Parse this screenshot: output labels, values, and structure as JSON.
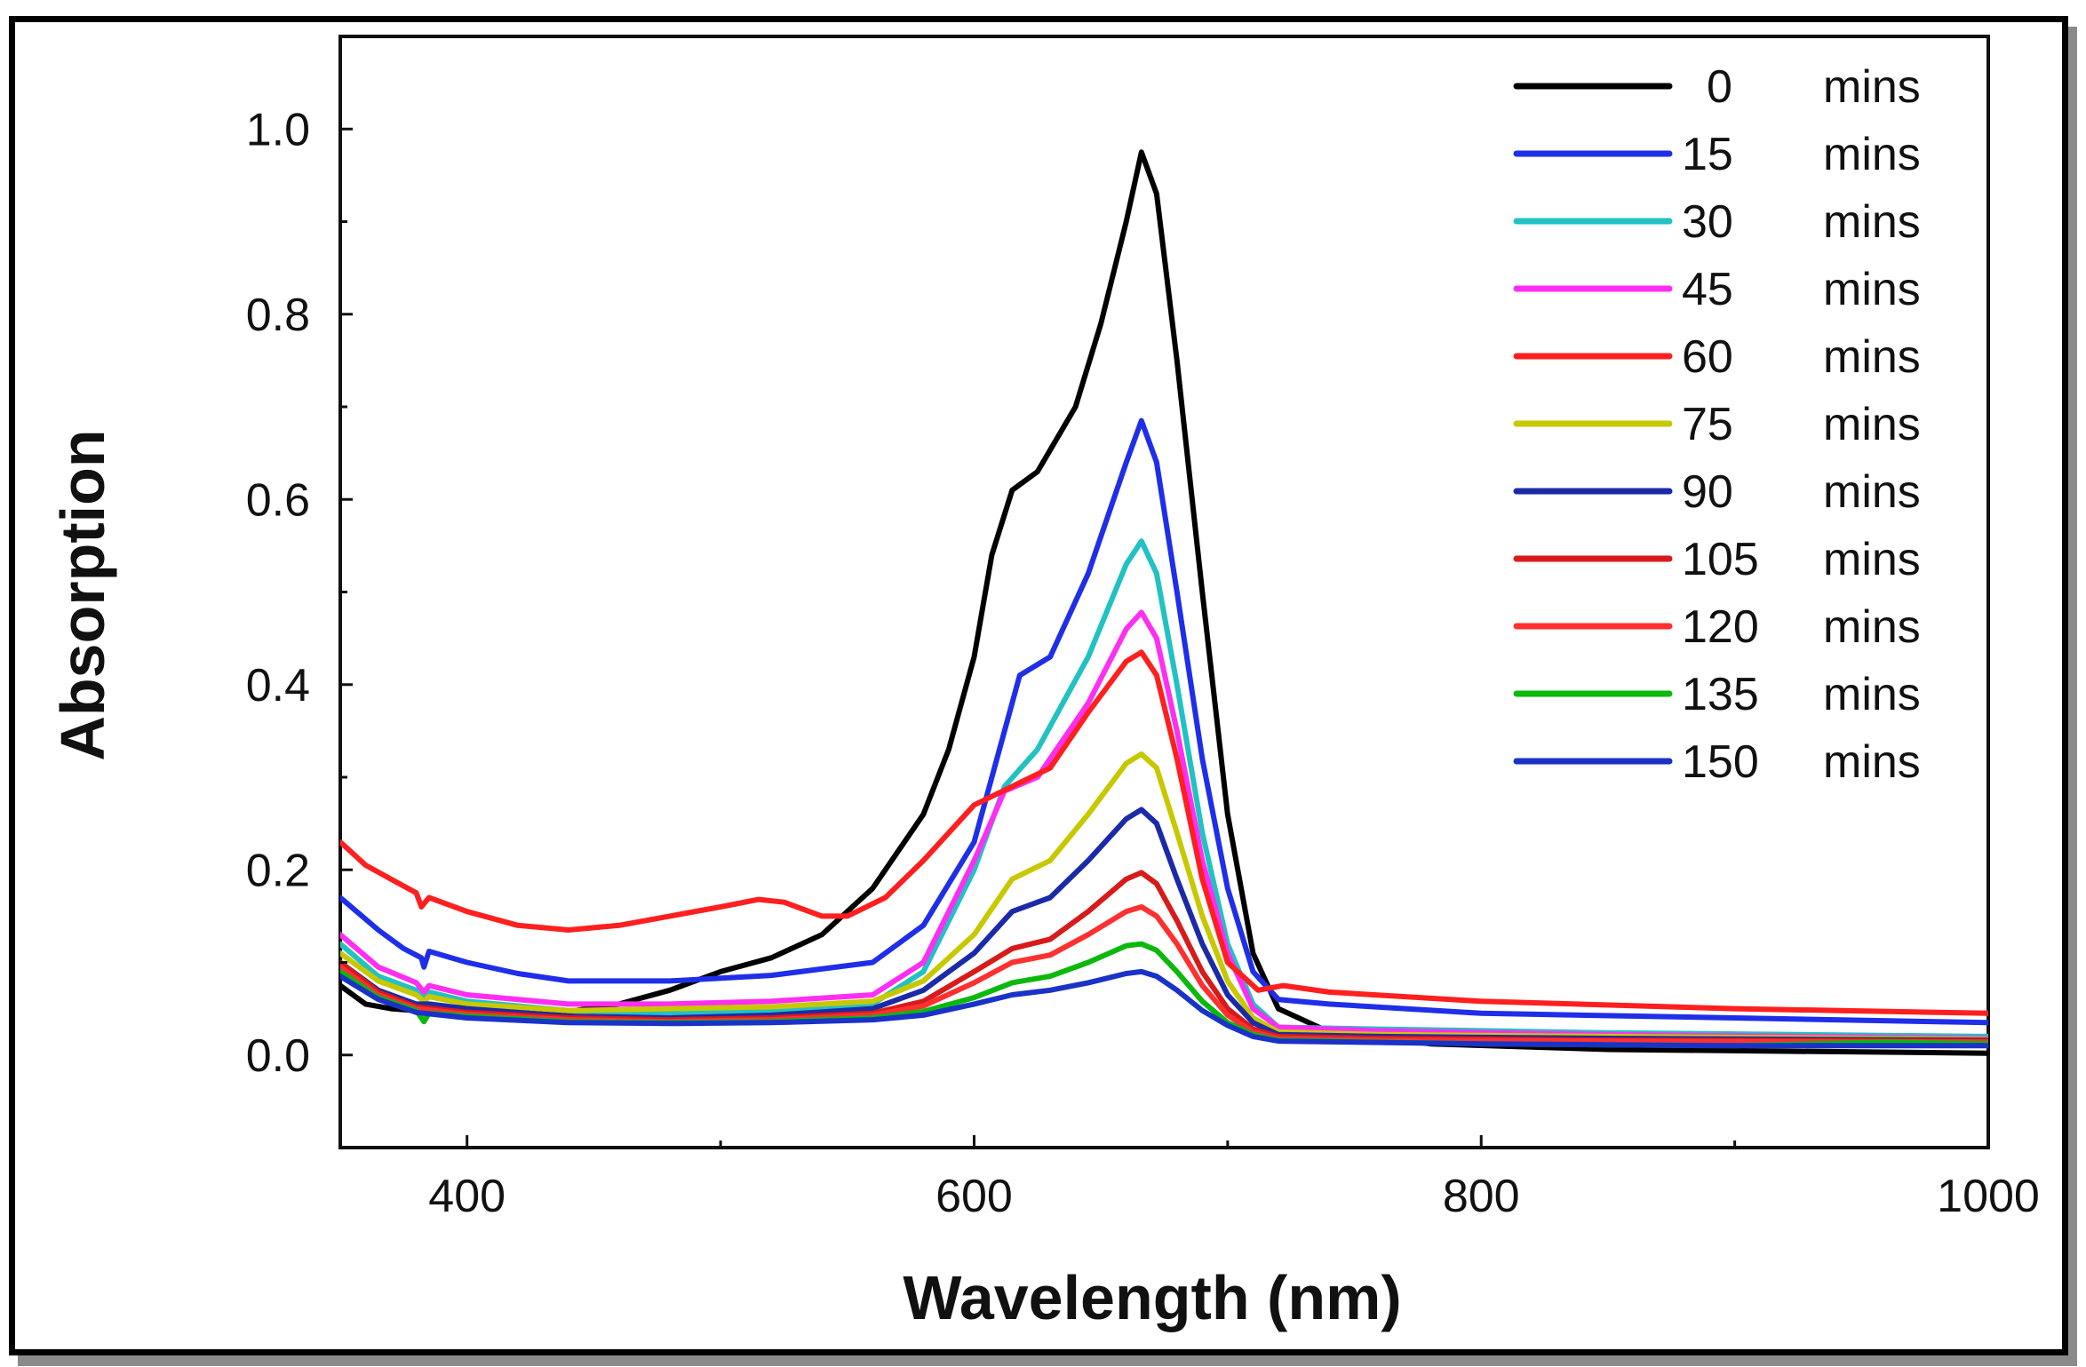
{
  "chart_data": {
    "type": "line",
    "title": "",
    "xlabel": "Wavelength (nm)",
    "ylabel": "Absorption",
    "xlim": [
      350,
      1000
    ],
    "ylim": [
      -0.1,
      1.1
    ],
    "xticks": [
      400,
      600,
      800,
      1000
    ],
    "yticks": [
      0.0,
      0.2,
      0.4,
      0.6,
      0.8,
      1.0
    ],
    "xtick_labels": [
      "400",
      "600",
      "800",
      "1000"
    ],
    "ytick_labels": [
      "0.0",
      "0.2",
      "0.4",
      "0.6",
      "0.8",
      "1.0"
    ],
    "grid": false,
    "legend_position": "top-right",
    "legend_unit": "mins",
    "series": [
      {
        "name": "0",
        "color": "#000000",
        "points": [
          [
            350,
            0.075
          ],
          [
            360,
            0.055
          ],
          [
            370,
            0.05
          ],
          [
            380,
            0.048
          ],
          [
            400,
            0.045
          ],
          [
            420,
            0.045
          ],
          [
            440,
            0.047
          ],
          [
            460,
            0.055
          ],
          [
            480,
            0.07
          ],
          [
            500,
            0.09
          ],
          [
            520,
            0.105
          ],
          [
            540,
            0.13
          ],
          [
            560,
            0.18
          ],
          [
            580,
            0.26
          ],
          [
            590,
            0.33
          ],
          [
            600,
            0.43
          ],
          [
            607,
            0.54
          ],
          [
            615,
            0.61
          ],
          [
            625,
            0.63
          ],
          [
            640,
            0.7
          ],
          [
            650,
            0.79
          ],
          [
            660,
            0.9
          ],
          [
            666,
            0.975
          ],
          [
            672,
            0.93
          ],
          [
            680,
            0.75
          ],
          [
            690,
            0.5
          ],
          [
            700,
            0.26
          ],
          [
            710,
            0.11
          ],
          [
            720,
            0.05
          ],
          [
            740,
            0.025
          ],
          [
            780,
            0.012
          ],
          [
            850,
            0.006
          ],
          [
            1000,
            0.002
          ]
        ]
      },
      {
        "name": "15",
        "color": "#1f2ee8",
        "points": [
          [
            350,
            0.17
          ],
          [
            365,
            0.135
          ],
          [
            375,
            0.115
          ],
          [
            382,
            0.105
          ],
          [
            383,
            0.095
          ],
          [
            385,
            0.112
          ],
          [
            400,
            0.1
          ],
          [
            420,
            0.088
          ],
          [
            440,
            0.08
          ],
          [
            480,
            0.08
          ],
          [
            520,
            0.086
          ],
          [
            560,
            0.1
          ],
          [
            580,
            0.14
          ],
          [
            600,
            0.23
          ],
          [
            610,
            0.33
          ],
          [
            618,
            0.41
          ],
          [
            630,
            0.43
          ],
          [
            645,
            0.52
          ],
          [
            660,
            0.64
          ],
          [
            666,
            0.685
          ],
          [
            672,
            0.64
          ],
          [
            680,
            0.5
          ],
          [
            690,
            0.32
          ],
          [
            700,
            0.18
          ],
          [
            710,
            0.09
          ],
          [
            720,
            0.06
          ],
          [
            740,
            0.055
          ],
          [
            800,
            0.045
          ],
          [
            900,
            0.04
          ],
          [
            1000,
            0.035
          ]
        ]
      },
      {
        "name": "30",
        "color": "#22c1c3",
        "points": [
          [
            350,
            0.12
          ],
          [
            365,
            0.085
          ],
          [
            380,
            0.07
          ],
          [
            383,
            0.06
          ],
          [
            385,
            0.068
          ],
          [
            400,
            0.058
          ],
          [
            440,
            0.048
          ],
          [
            480,
            0.045
          ],
          [
            520,
            0.047
          ],
          [
            560,
            0.055
          ],
          [
            580,
            0.09
          ],
          [
            600,
            0.2
          ],
          [
            612,
            0.29
          ],
          [
            625,
            0.33
          ],
          [
            645,
            0.43
          ],
          [
            660,
            0.53
          ],
          [
            666,
            0.555
          ],
          [
            672,
            0.52
          ],
          [
            680,
            0.4
          ],
          [
            690,
            0.24
          ],
          [
            700,
            0.12
          ],
          [
            710,
            0.055
          ],
          [
            720,
            0.03
          ],
          [
            760,
            0.028
          ],
          [
            850,
            0.024
          ],
          [
            1000,
            0.02
          ]
        ]
      },
      {
        "name": "45",
        "color": "#ff2ef2",
        "points": [
          [
            350,
            0.13
          ],
          [
            365,
            0.095
          ],
          [
            380,
            0.078
          ],
          [
            383,
            0.068
          ],
          [
            385,
            0.075
          ],
          [
            400,
            0.065
          ],
          [
            440,
            0.055
          ],
          [
            480,
            0.055
          ],
          [
            520,
            0.058
          ],
          [
            560,
            0.065
          ],
          [
            580,
            0.1
          ],
          [
            600,
            0.21
          ],
          [
            612,
            0.285
          ],
          [
            625,
            0.3
          ],
          [
            645,
            0.38
          ],
          [
            660,
            0.46
          ],
          [
            666,
            0.478
          ],
          [
            672,
            0.45
          ],
          [
            680,
            0.35
          ],
          [
            690,
            0.21
          ],
          [
            700,
            0.11
          ],
          [
            710,
            0.05
          ],
          [
            720,
            0.03
          ],
          [
            760,
            0.026
          ],
          [
            850,
            0.022
          ],
          [
            1000,
            0.018
          ]
        ]
      },
      {
        "name": "60",
        "color": "#ff1f1f",
        "points": [
          [
            350,
            0.23
          ],
          [
            360,
            0.205
          ],
          [
            370,
            0.19
          ],
          [
            380,
            0.175
          ],
          [
            382,
            0.16
          ],
          [
            385,
            0.17
          ],
          [
            400,
            0.155
          ],
          [
            420,
            0.14
          ],
          [
            440,
            0.135
          ],
          [
            460,
            0.14
          ],
          [
            480,
            0.15
          ],
          [
            500,
            0.16
          ],
          [
            515,
            0.168
          ],
          [
            525,
            0.165
          ],
          [
            540,
            0.15
          ],
          [
            550,
            0.15
          ],
          [
            565,
            0.17
          ],
          [
            580,
            0.21
          ],
          [
            600,
            0.27
          ],
          [
            615,
            0.29
          ],
          [
            630,
            0.31
          ],
          [
            645,
            0.37
          ],
          [
            660,
            0.425
          ],
          [
            666,
            0.435
          ],
          [
            672,
            0.41
          ],
          [
            680,
            0.32
          ],
          [
            690,
            0.19
          ],
          [
            700,
            0.1
          ],
          [
            712,
            0.07
          ],
          [
            722,
            0.075
          ],
          [
            740,
            0.068
          ],
          [
            800,
            0.058
          ],
          [
            900,
            0.05
          ],
          [
            1000,
            0.045
          ]
        ]
      },
      {
        "name": "75",
        "color": "#c8c800",
        "points": [
          [
            350,
            0.11
          ],
          [
            365,
            0.08
          ],
          [
            380,
            0.065
          ],
          [
            383,
            0.058
          ],
          [
            385,
            0.063
          ],
          [
            400,
            0.055
          ],
          [
            440,
            0.048
          ],
          [
            480,
            0.05
          ],
          [
            520,
            0.052
          ],
          [
            560,
            0.058
          ],
          [
            580,
            0.08
          ],
          [
            600,
            0.13
          ],
          [
            615,
            0.19
          ],
          [
            630,
            0.21
          ],
          [
            645,
            0.26
          ],
          [
            660,
            0.315
          ],
          [
            666,
            0.325
          ],
          [
            672,
            0.31
          ],
          [
            680,
            0.24
          ],
          [
            690,
            0.15
          ],
          [
            700,
            0.08
          ],
          [
            710,
            0.04
          ],
          [
            720,
            0.025
          ],
          [
            760,
            0.022
          ],
          [
            850,
            0.02
          ],
          [
            1000,
            0.017
          ]
        ]
      },
      {
        "name": "90",
        "color": "#1b2aa8",
        "points": [
          [
            350,
            0.1
          ],
          [
            365,
            0.07
          ],
          [
            380,
            0.055
          ],
          [
            385,
            0.055
          ],
          [
            400,
            0.05
          ],
          [
            440,
            0.042
          ],
          [
            480,
            0.04
          ],
          [
            520,
            0.043
          ],
          [
            560,
            0.05
          ],
          [
            580,
            0.07
          ],
          [
            600,
            0.11
          ],
          [
            615,
            0.155
          ],
          [
            630,
            0.17
          ],
          [
            645,
            0.21
          ],
          [
            660,
            0.255
          ],
          [
            666,
            0.265
          ],
          [
            672,
            0.25
          ],
          [
            680,
            0.19
          ],
          [
            690,
            0.12
          ],
          [
            700,
            0.065
          ],
          [
            710,
            0.035
          ],
          [
            720,
            0.022
          ],
          [
            760,
            0.02
          ],
          [
            850,
            0.018
          ],
          [
            1000,
            0.016
          ]
        ]
      },
      {
        "name": "105",
        "color": "#d81a1a",
        "points": [
          [
            350,
            0.1
          ],
          [
            365,
            0.068
          ],
          [
            380,
            0.052
          ],
          [
            400,
            0.046
          ],
          [
            440,
            0.04
          ],
          [
            480,
            0.038
          ],
          [
            520,
            0.04
          ],
          [
            560,
            0.045
          ],
          [
            580,
            0.058
          ],
          [
            600,
            0.09
          ],
          [
            615,
            0.115
          ],
          [
            630,
            0.125
          ],
          [
            645,
            0.155
          ],
          [
            660,
            0.19
          ],
          [
            666,
            0.197
          ],
          [
            672,
            0.185
          ],
          [
            680,
            0.145
          ],
          [
            690,
            0.09
          ],
          [
            700,
            0.05
          ],
          [
            710,
            0.028
          ],
          [
            720,
            0.02
          ],
          [
            760,
            0.018
          ],
          [
            850,
            0.016
          ],
          [
            1000,
            0.015
          ]
        ]
      },
      {
        "name": "120",
        "color": "#ff3030",
        "points": [
          [
            350,
            0.095
          ],
          [
            365,
            0.065
          ],
          [
            380,
            0.05
          ],
          [
            400,
            0.044
          ],
          [
            440,
            0.038
          ],
          [
            480,
            0.036
          ],
          [
            520,
            0.038
          ],
          [
            560,
            0.043
          ],
          [
            580,
            0.053
          ],
          [
            600,
            0.078
          ],
          [
            615,
            0.1
          ],
          [
            630,
            0.108
          ],
          [
            645,
            0.13
          ],
          [
            660,
            0.155
          ],
          [
            666,
            0.16
          ],
          [
            672,
            0.15
          ],
          [
            680,
            0.12
          ],
          [
            690,
            0.075
          ],
          [
            700,
            0.043
          ],
          [
            710,
            0.025
          ],
          [
            720,
            0.018
          ],
          [
            760,
            0.016
          ],
          [
            850,
            0.015
          ],
          [
            1000,
            0.014
          ]
        ]
      },
      {
        "name": "135",
        "color": "#0cb80c",
        "points": [
          [
            350,
            0.09
          ],
          [
            365,
            0.062
          ],
          [
            380,
            0.048
          ],
          [
            383,
            0.036
          ],
          [
            385,
            0.045
          ],
          [
            400,
            0.042
          ],
          [
            440,
            0.036
          ],
          [
            480,
            0.035
          ],
          [
            520,
            0.036
          ],
          [
            560,
            0.04
          ],
          [
            580,
            0.047
          ],
          [
            600,
            0.062
          ],
          [
            615,
            0.078
          ],
          [
            630,
            0.085
          ],
          [
            645,
            0.1
          ],
          [
            660,
            0.118
          ],
          [
            666,
            0.12
          ],
          [
            672,
            0.113
          ],
          [
            680,
            0.09
          ],
          [
            690,
            0.058
          ],
          [
            700,
            0.035
          ],
          [
            710,
            0.022
          ],
          [
            720,
            0.016
          ],
          [
            800,
            0.012
          ],
          [
            900,
            0.01
          ],
          [
            960,
            0.014
          ],
          [
            1000,
            0.012
          ]
        ]
      },
      {
        "name": "150",
        "color": "#1a32c8",
        "points": [
          [
            350,
            0.085
          ],
          [
            365,
            0.06
          ],
          [
            380,
            0.046
          ],
          [
            400,
            0.04
          ],
          [
            440,
            0.035
          ],
          [
            480,
            0.034
          ],
          [
            520,
            0.035
          ],
          [
            560,
            0.038
          ],
          [
            580,
            0.043
          ],
          [
            600,
            0.055
          ],
          [
            615,
            0.065
          ],
          [
            630,
            0.07
          ],
          [
            645,
            0.078
          ],
          [
            660,
            0.088
          ],
          [
            666,
            0.09
          ],
          [
            672,
            0.085
          ],
          [
            680,
            0.07
          ],
          [
            690,
            0.048
          ],
          [
            700,
            0.032
          ],
          [
            710,
            0.02
          ],
          [
            720,
            0.015
          ],
          [
            800,
            0.012
          ],
          [
            900,
            0.01
          ],
          [
            1000,
            0.01
          ]
        ]
      }
    ]
  }
}
